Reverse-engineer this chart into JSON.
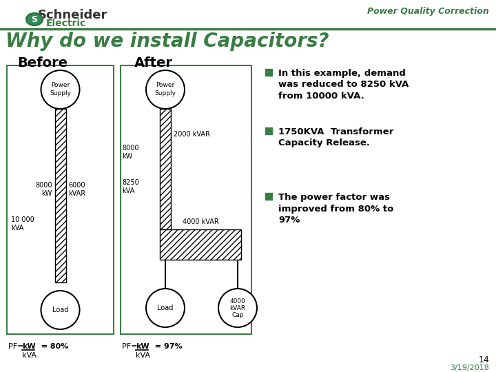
{
  "title": "Why do we install Capacitors?",
  "subtitle": "Power Quality Correction",
  "bg_color": "#ffffff",
  "title_color": "#3a7d44",
  "subtitle_color": "#3a7d44",
  "header_line_color": "#3a7d44",
  "before_label": "Before",
  "after_label": "After",
  "bullet1": "In this example, demand\nwas reduced to 8250 kVA\nfrom 10000 kVA.",
  "bullet2": "1750KVA  Transformer\nCapacity Release.",
  "bullet3": "The power factor was\nimproved from 80% to\n97%",
  "box_color": "#3a7d44",
  "bullet_color": "#3a7d44",
  "text_color": "#000000",
  "page_num": "14",
  "date": "3/19/2018",
  "schneider_color": "#333333",
  "electric_color": "#3a7d44"
}
